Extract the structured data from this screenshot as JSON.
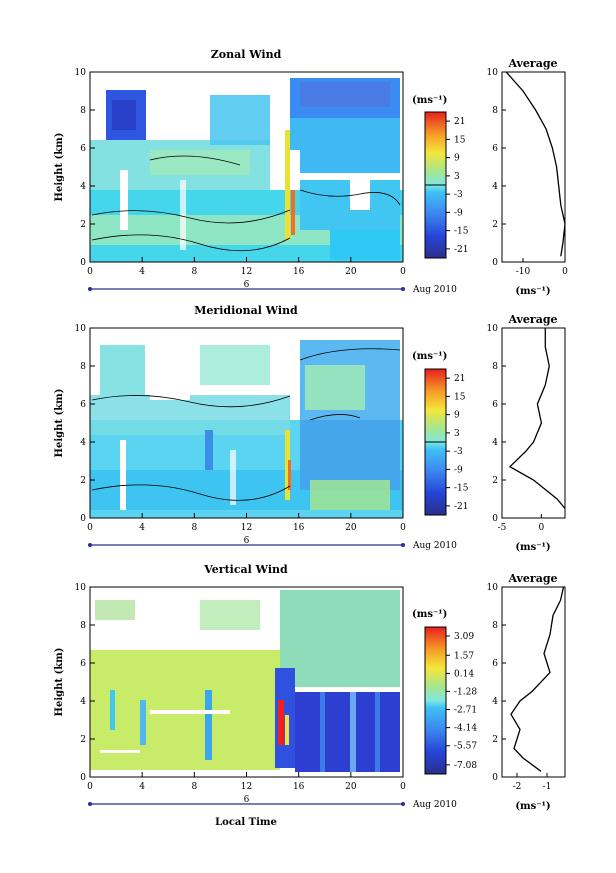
{
  "figure": {
    "xlabel": "Local Time",
    "date_suffix": "Aug 2010",
    "day_label": "6"
  },
  "chart_data": [
    {
      "type": "heatmap",
      "title": "Zonal Wind",
      "xlabel": "",
      "ylabel": "Height (km)",
      "x_ticks": [
        "0",
        "4",
        "8",
        "12",
        "16",
        "20",
        "0"
      ],
      "y_ticks": [
        "0",
        "2",
        "4",
        "6",
        "8",
        "10"
      ],
      "xlim": [
        0,
        24
      ],
      "ylim": [
        0,
        10
      ],
      "colorbar": {
        "unit": "(ms⁻¹)",
        "ticks": [
          "21",
          "15",
          "9",
          "3",
          "-3",
          "-9",
          "-15",
          "-21"
        ],
        "range": [
          -24,
          24
        ]
      },
      "average_profile": {
        "title": "Average",
        "xlabel": "(ms⁻¹)",
        "x_ticks": [
          "-10",
          "0"
        ],
        "xlim": [
          -15,
          0
        ],
        "y_ticks": [
          "0",
          "2",
          "4",
          "6",
          "8",
          "10"
        ],
        "height_km": [
          0.3,
          1,
          2,
          3,
          4,
          5,
          6,
          7,
          8,
          9,
          9.5,
          10
        ],
        "values": [
          -1,
          -0.5,
          0,
          -1,
          -1.5,
          -2,
          -3,
          -4.5,
          -7,
          -10,
          -12,
          -14
        ]
      }
    },
    {
      "type": "heatmap",
      "title": "Meridional Wind",
      "xlabel": "",
      "ylabel": "Height (km)",
      "x_ticks": [
        "0",
        "4",
        "8",
        "12",
        "16",
        "20",
        "0"
      ],
      "y_ticks": [
        "0",
        "2",
        "4",
        "6",
        "8",
        "10"
      ],
      "xlim": [
        0,
        24
      ],
      "ylim": [
        0,
        10
      ],
      "colorbar": {
        "unit": "(ms⁻¹)",
        "ticks": [
          "21",
          "15",
          "9",
          "3",
          "-3",
          "-9",
          "-15",
          "-21"
        ],
        "range": [
          -24,
          24
        ]
      },
      "average_profile": {
        "title": "Average",
        "xlabel": "(ms⁻¹)",
        "x_ticks": [
          "-5",
          "0"
        ],
        "xlim": [
          -5,
          3
        ],
        "y_ticks": [
          "0",
          "2",
          "4",
          "6",
          "8",
          "10"
        ],
        "height_km": [
          0.5,
          1,
          2,
          2.7,
          3.5,
          4,
          5,
          6,
          7,
          8,
          9,
          9.5,
          10
        ],
        "values": [
          3,
          2,
          -1,
          -4,
          -2,
          -1,
          0,
          -0.5,
          0.5,
          1,
          0.5,
          0.5,
          0.5
        ]
      }
    },
    {
      "type": "heatmap",
      "title": "Vertical Wind",
      "xlabel": "Local Time",
      "ylabel": "Height (km)",
      "x_ticks": [
        "0",
        "4",
        "8",
        "12",
        "16",
        "20",
        "0"
      ],
      "y_ticks": [
        "0",
        "2",
        "4",
        "6",
        "8",
        "10"
      ],
      "xlim": [
        0,
        24
      ],
      "ylim": [
        0,
        10
      ],
      "colorbar": {
        "unit": "(ms⁻¹)",
        "ticks": [
          "3.09",
          "1.57",
          "0.14",
          "-1.28",
          "-2.71",
          "-4.14",
          "-5.57",
          "-7.08"
        ],
        "range": [
          -7.8,
          3.8
        ]
      },
      "average_profile": {
        "title": "Average",
        "xlabel": "(ms⁻¹)",
        "x_ticks": [
          "-2",
          "-1"
        ],
        "xlim": [
          -2.5,
          -0.4
        ],
        "y_ticks": [
          "0",
          "2",
          "4",
          "6",
          "8",
          "10"
        ],
        "height_km": [
          0.3,
          1,
          1.5,
          2.5,
          3.3,
          4,
          4.5,
          5.5,
          6.5,
          7.5,
          8.5,
          9.3,
          10
        ],
        "values": [
          -1.2,
          -1.8,
          -2.1,
          -1.9,
          -2.2,
          -1.9,
          -1.5,
          -0.9,
          -1.1,
          -0.9,
          -0.8,
          -0.55,
          -0.45
        ]
      }
    }
  ]
}
